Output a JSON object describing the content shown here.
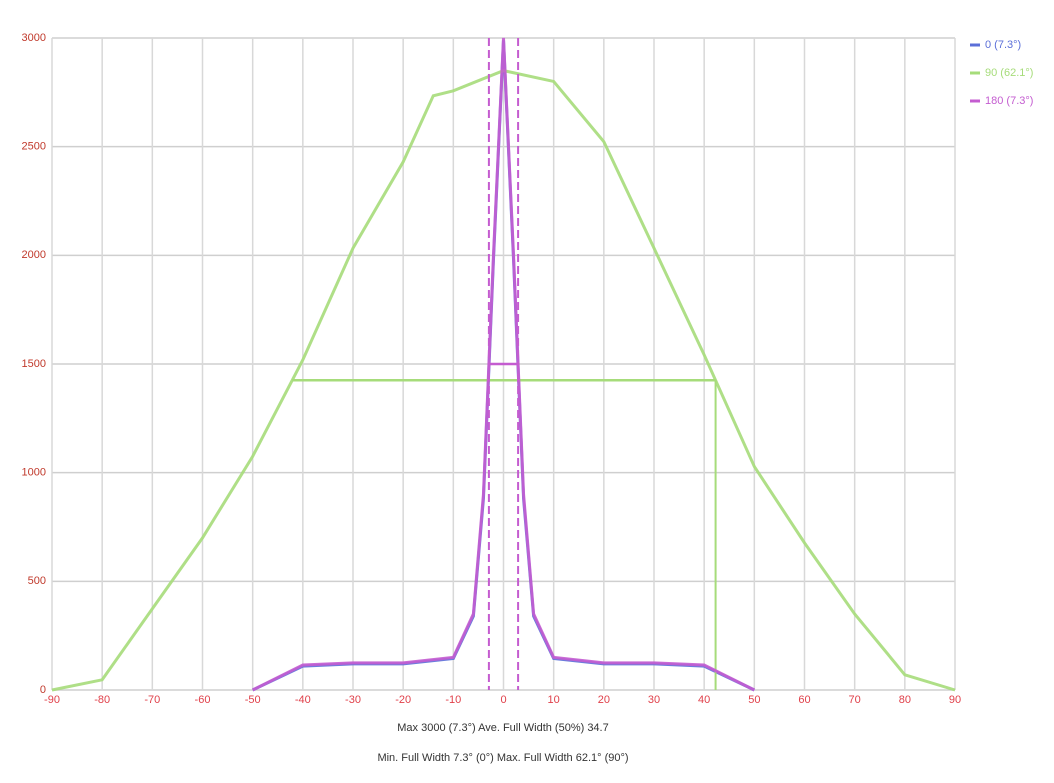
{
  "chart_data": {
    "type": "line",
    "x_label_line1": "Max 3000 (7.3°) Ave. Full Width (50%) 34.7",
    "x_label_line2": "Min. Full Width 7.3° (0°) Max. Full Width 62.1° (90°)",
    "xlim": [
      -90,
      90
    ],
    "xticks": [
      -90,
      -80,
      -70,
      -60,
      -50,
      -40,
      -30,
      -20,
      -10,
      0,
      10,
      20,
      30,
      40,
      50,
      60,
      70,
      80,
      90
    ],
    "ylim": [
      0,
      3000
    ],
    "yticks": [
      0,
      500,
      1000,
      1500,
      2000,
      2500,
      3000
    ],
    "grid": true,
    "legend": "top-right",
    "series": [
      {
        "name": "0 (7.3°)",
        "color": "#5b6fd8",
        "half_width_lines": false,
        "x": [
          -50,
          -40,
          -30,
          -20,
          -10,
          -6,
          -4,
          -2,
          0,
          2,
          4,
          6,
          10,
          20,
          30,
          40,
          50
        ],
        "values": [
          0,
          110,
          120,
          120,
          145,
          340,
          880,
          1980,
          2990,
          1980,
          880,
          340,
          145,
          120,
          120,
          110,
          0
        ]
      },
      {
        "name": "90 (62.1°)",
        "color": "#a6dc7a",
        "half_width_lines": true,
        "x": [
          -90,
          -80,
          -70,
          -60,
          -50,
          -40,
          -30,
          -20,
          -14,
          -10,
          0,
          10,
          20,
          30,
          40,
          50,
          60,
          70,
          80,
          90
        ],
        "values": [
          0,
          47,
          374,
          700,
          1075,
          1519,
          2033,
          2430,
          2734,
          2757,
          2850,
          2800,
          2523,
          2033,
          1542,
          1028,
          677,
          350,
          70,
          0
        ]
      },
      {
        "name": "180 (7.3°)",
        "color": "#c45cd0",
        "half_width_lines": true,
        "x": [
          -50,
          -40,
          -30,
          -20,
          -10,
          -6,
          -4,
          -2,
          0,
          2,
          4,
          6,
          10,
          20,
          30,
          40,
          50
        ],
        "values": [
          0,
          115,
          125,
          125,
          150,
          350,
          900,
          2000,
          3000,
          2000,
          900,
          350,
          150,
          125,
          125,
          115,
          0
        ]
      }
    ]
  }
}
